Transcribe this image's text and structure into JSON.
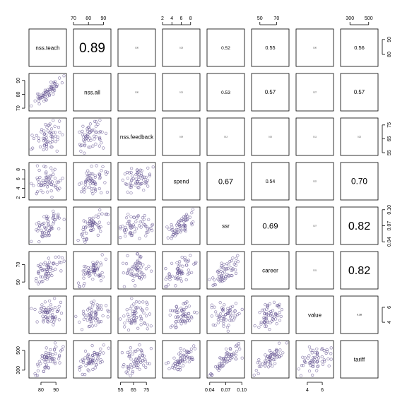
{
  "chart_data": {
    "type": "scatter-matrix",
    "variables": [
      "nss.teach",
      "nss.all",
      "nss.feedback",
      "spend",
      "ssr",
      "career",
      "value",
      "tariff"
    ],
    "point_color": "#5b4a8b",
    "correlations": [
      {
        "row": 0,
        "col": 1,
        "value": "0.89"
      },
      {
        "row": 0,
        "col": 2,
        "value": "0.30"
      },
      {
        "row": 0,
        "col": 3,
        "value": "0.23"
      },
      {
        "row": 0,
        "col": 4,
        "value": "0.52"
      },
      {
        "row": 0,
        "col": 5,
        "value": "0.55"
      },
      {
        "row": 0,
        "col": 6,
        "value": "0.30"
      },
      {
        "row": 0,
        "col": 7,
        "value": "0.56"
      },
      {
        "row": 1,
        "col": 2,
        "value": "0.30"
      },
      {
        "row": 1,
        "col": 3,
        "value": "0.21"
      },
      {
        "row": 1,
        "col": 4,
        "value": "0.53"
      },
      {
        "row": 1,
        "col": 5,
        "value": "0.57"
      },
      {
        "row": 1,
        "col": 6,
        "value": "0.27"
      },
      {
        "row": 1,
        "col": 7,
        "value": "0.57"
      },
      {
        "row": 2,
        "col": 3,
        "value": "0.19"
      },
      {
        "row": 2,
        "col": 4,
        "value": "0.13"
      },
      {
        "row": 2,
        "col": 5,
        "value": "0.15"
      },
      {
        "row": 2,
        "col": 6,
        "value": "0.11"
      },
      {
        "row": 2,
        "col": 7,
        "value": "0.22"
      },
      {
        "row": 3,
        "col": 4,
        "value": "0.67"
      },
      {
        "row": 3,
        "col": 5,
        "value": "0.54"
      },
      {
        "row": 3,
        "col": 6,
        "value": "0.22"
      },
      {
        "row": 3,
        "col": 7,
        "value": "0.70"
      },
      {
        "row": 4,
        "col": 5,
        "value": "0.69"
      },
      {
        "row": 4,
        "col": 6,
        "value": "0.27"
      },
      {
        "row": 4,
        "col": 7,
        "value": "0.82"
      },
      {
        "row": 5,
        "col": 6,
        "value": "0.31"
      },
      {
        "row": 5,
        "col": 7,
        "value": "0.82"
      },
      {
        "row": 6,
        "col": 7,
        "value": "0.38"
      }
    ],
    "axes": {
      "top": [
        {
          "col": 1,
          "ticks": [
            70,
            80,
            90
          ],
          "range": [
            70,
            95
          ]
        },
        {
          "col": 3,
          "ticks": [
            2,
            4,
            6,
            8
          ],
          "range": [
            2,
            10
          ]
        },
        {
          "col": 5,
          "ticks": [
            50,
            70
          ],
          "range": [
            40,
            85
          ]
        },
        {
          "col": 7,
          "ticks": [
            300,
            500
          ],
          "range": [
            200,
            600
          ]
        }
      ],
      "bottom": [
        {
          "col": 0,
          "ticks": [
            80,
            90
          ],
          "range": [
            72,
            97
          ]
        },
        {
          "col": 2,
          "ticks": [
            55,
            65,
            75
          ],
          "range": [
            53,
            82
          ]
        },
        {
          "col": 4,
          "ticks": [
            0.04,
            0.07,
            0.1
          ],
          "range": [
            0.035,
            0.105
          ]
        },
        {
          "col": 6,
          "ticks": [
            4,
            6
          ],
          "range": [
            2.5,
            7.5
          ]
        }
      ],
      "left": [
        {
          "row": 1,
          "ticks": [
            70,
            80,
            90
          ],
          "range": [
            68,
            95
          ]
        },
        {
          "row": 3,
          "ticks": [
            2,
            4,
            6,
            8
          ],
          "range": [
            1.5,
            9.5
          ]
        },
        {
          "row": 5,
          "ticks": [
            50,
            70
          ],
          "range": [
            42,
            85
          ]
        },
        {
          "row": 7,
          "ticks": [
            300,
            500
          ],
          "range": [
            220,
            600
          ]
        }
      ],
      "right": [
        {
          "row": 0,
          "ticks": [
            80,
            90
          ],
          "range": [
            72,
            97
          ]
        },
        {
          "row": 2,
          "ticks": [
            55,
            65,
            75
          ],
          "range": [
            53,
            80
          ]
        },
        {
          "row": 4,
          "ticks": [
            0.04,
            0.07,
            0.1
          ],
          "range": [
            0.035,
            0.105
          ]
        },
        {
          "row": 6,
          "ticks": [
            4,
            6
          ],
          "range": [
            2.5,
            7.5
          ]
        }
      ]
    }
  }
}
